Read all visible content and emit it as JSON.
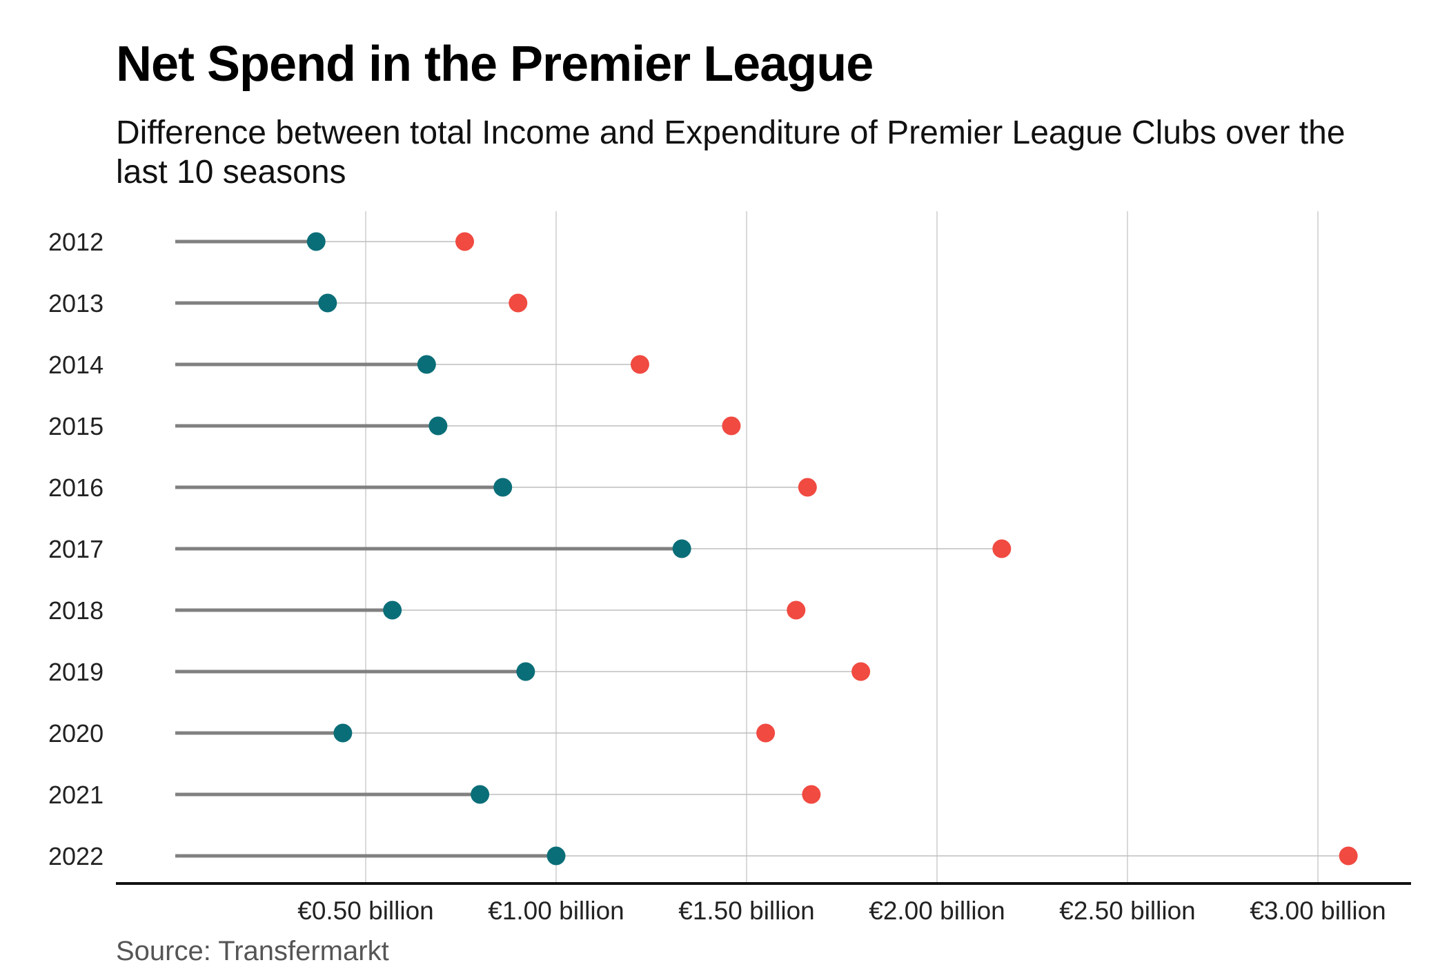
{
  "chart_data": {
    "type": "dumbbell",
    "title": "Net Spend in the Premier League",
    "subtitle": "Difference between total Income and Expenditure of Premier League Clubs over the last 10 seasons",
    "source": "Source: Transfermarkt",
    "xlim": [
      0.0,
      3.0
    ],
    "x_ticks": [
      0.5,
      1.0,
      1.5,
      2.0,
      2.5,
      3.0
    ],
    "x_tick_labels": [
      "€0.50 billion",
      "€1.00 billion",
      "€1.50 billion",
      "€2.00 billion",
      "€2.50 billion",
      "€3.00 billion"
    ],
    "grid": true,
    "categories": [
      "2012",
      "2013",
      "2014",
      "2015",
      "2016",
      "2017",
      "2018",
      "2019",
      "2020",
      "2021",
      "2022"
    ],
    "series": [
      {
        "values": [
          0.37,
          0.4,
          0.66,
          0.69,
          0.86,
          1.33,
          0.57,
          0.92,
          0.44,
          0.8,
          1.0
        ]
      },
      {
        "values": [
          0.76,
          0.9,
          1.22,
          1.46,
          1.66,
          2.17,
          1.63,
          1.8,
          1.55,
          1.67,
          3.08
        ]
      }
    ],
    "colors": {
      "teal": "#0a6e78",
      "red": "#f04a41",
      "stem": "#808080",
      "link": "#bdbdbd",
      "grid": "#d9d9d9",
      "axis": "#111111"
    }
  }
}
